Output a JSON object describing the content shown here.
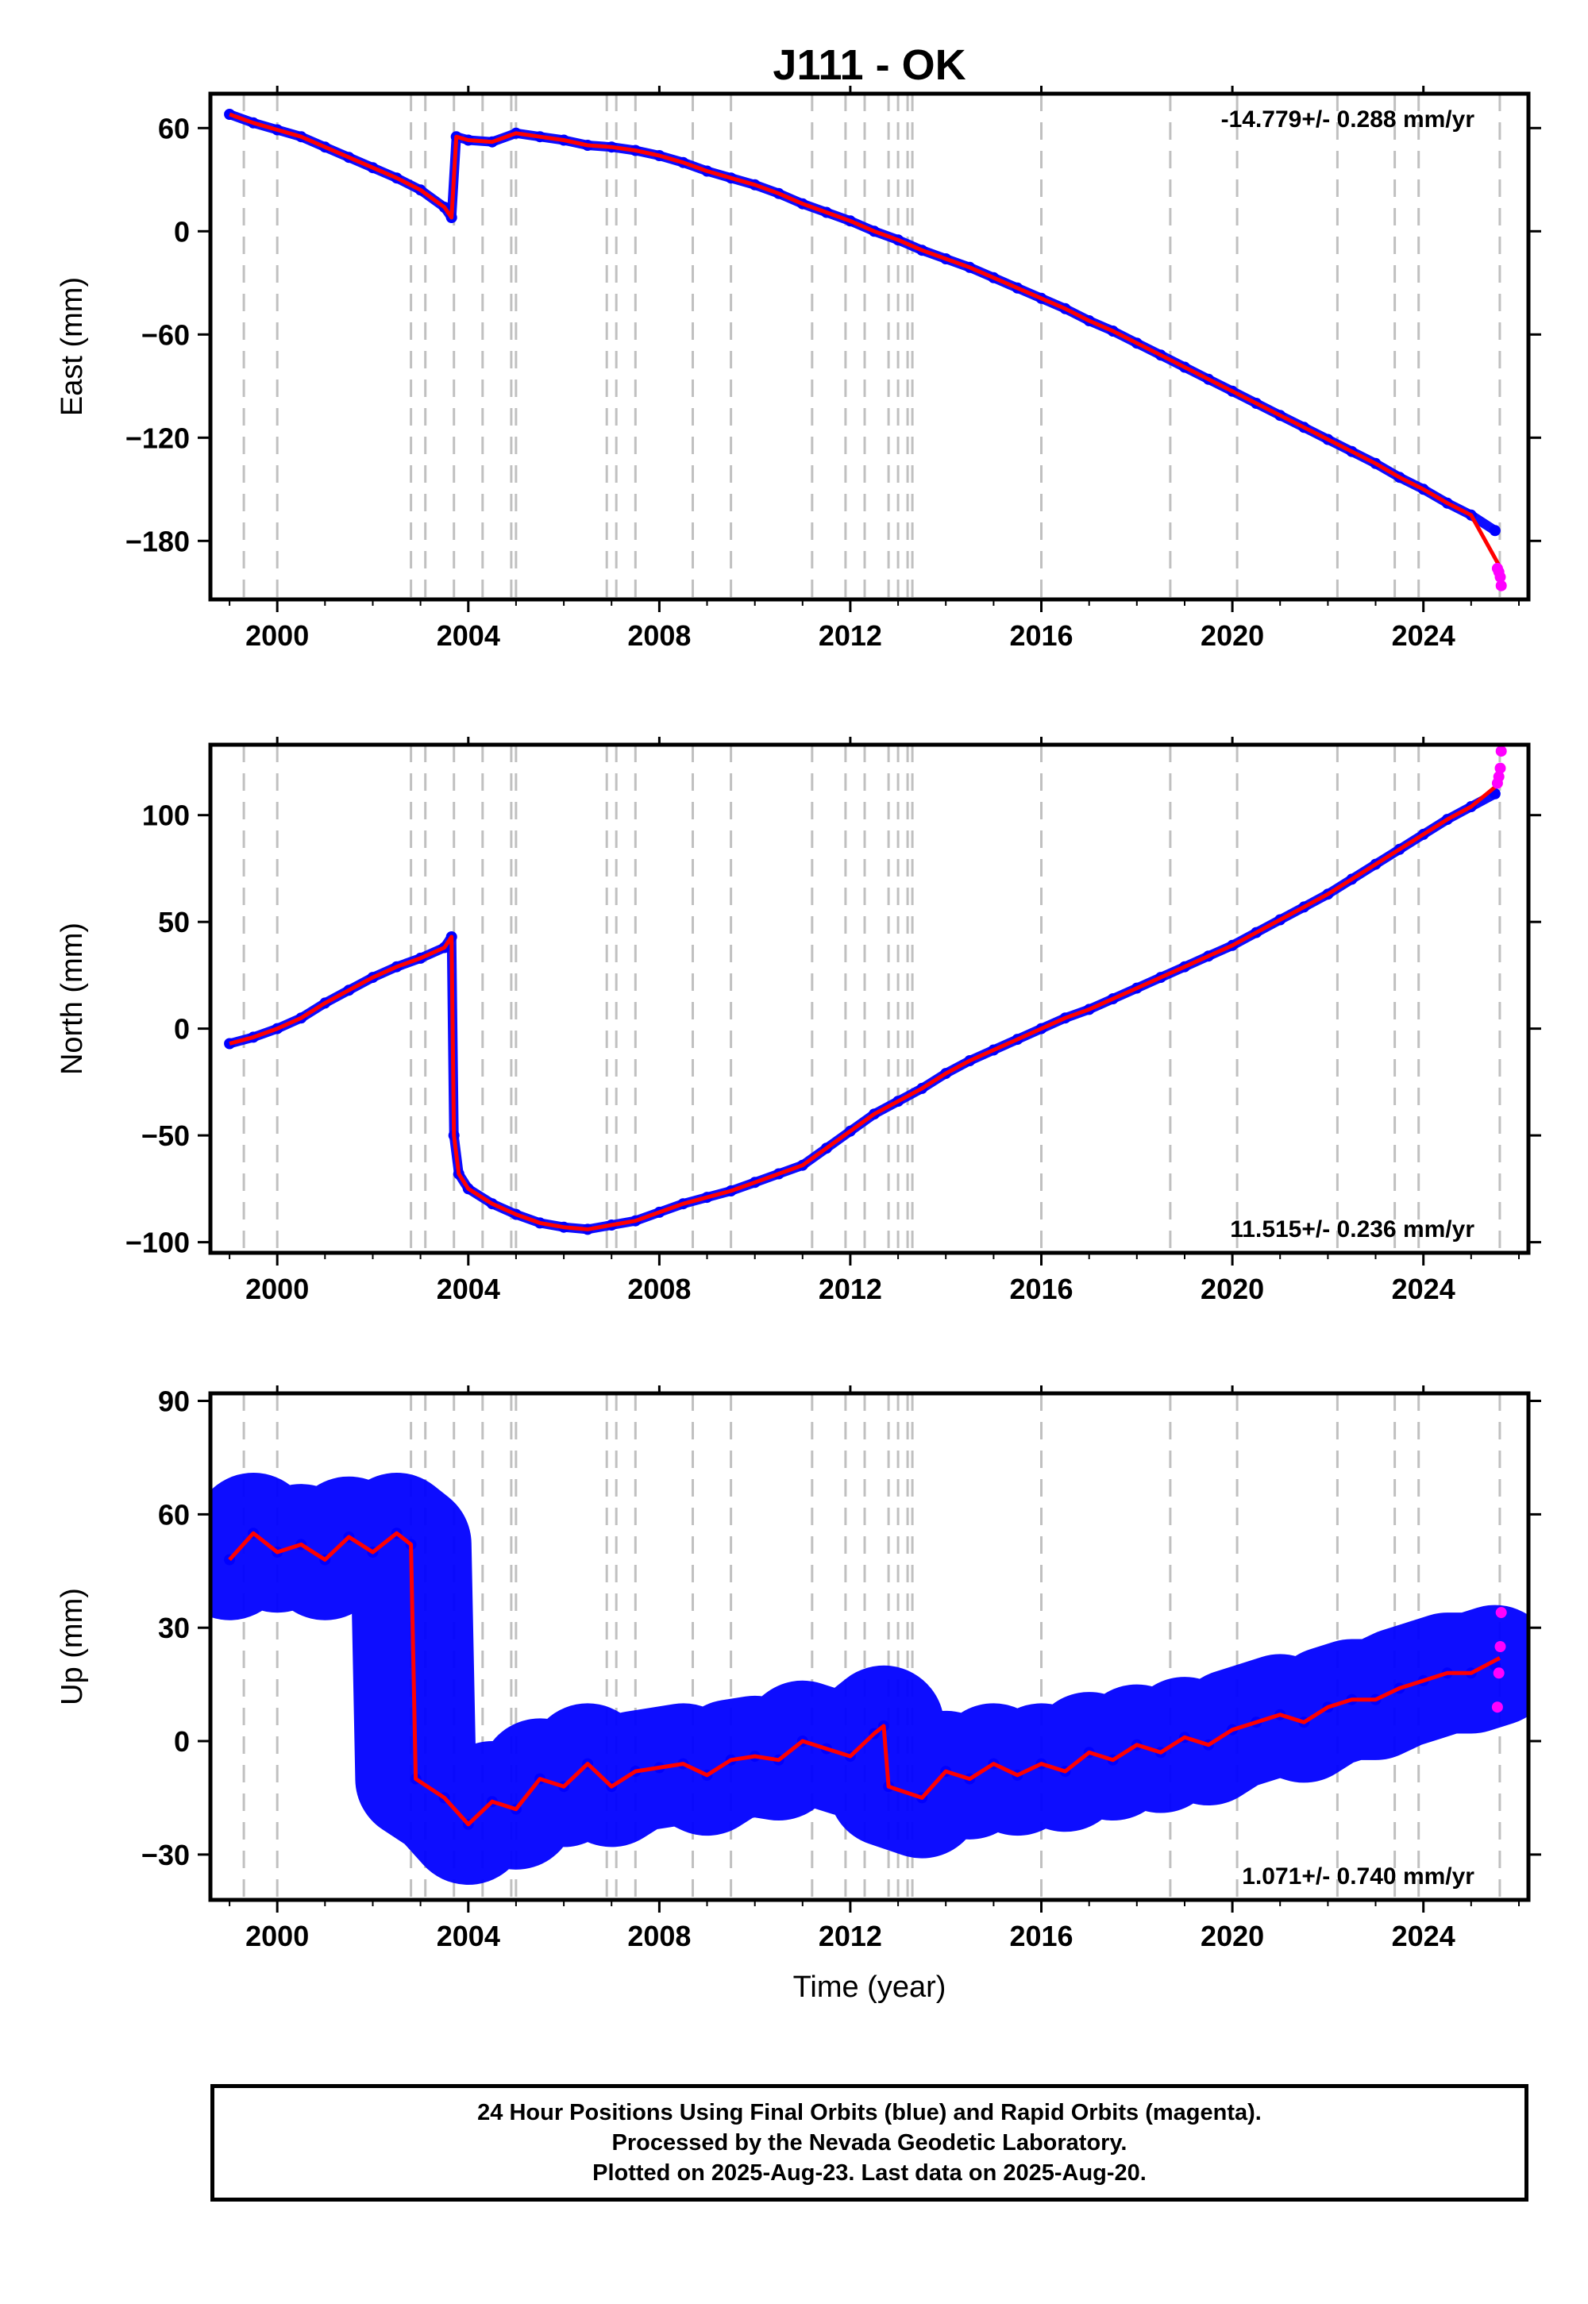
{
  "title": "J111 - OK",
  "colors": {
    "final_orbits": "#0000ff",
    "rapid_orbits": "#ff00ff",
    "model_fit": "#ff0000",
    "event_lines": "#c0c0c0"
  },
  "xlabel": "Time (year)",
  "footer": {
    "line1": "24 Hour Positions Using Final Orbits (blue) and Rapid Orbits (magenta).",
    "line2": "Processed by the Nevada Geodetic Laboratory.",
    "line3": "Plotted on 2025-Aug-23. Last data on 2025-Aug-20."
  },
  "chart_data": [
    {
      "type": "scatter",
      "component": "east",
      "ylabel": "East (mm)",
      "rate": "-14.779+/- 0.288 mm/yr",
      "rate_position": "top-right",
      "xlim": [
        1998.6,
        2026.2
      ],
      "ylim": [
        -214,
        80
      ],
      "xticks": [
        2000,
        2004,
        2008,
        2012,
        2016,
        2020,
        2024
      ],
      "yticks": [
        -180,
        -120,
        -60,
        0,
        60
      ],
      "grid": false,
      "event_lines": [
        1999.3,
        2000.0,
        2002.8,
        2003.1,
        2003.7,
        2004.3,
        2004.9,
        2005.0,
        2006.9,
        2007.1,
        2007.5,
        2008.7,
        2009.5,
        2011.2,
        2011.9,
        2012.3,
        2012.8,
        2013.0,
        2013.2,
        2013.3,
        2016.0,
        2018.7,
        2020.1,
        2022.2,
        2023.4,
        2023.9,
        2025.6
      ],
      "series": [
        {
          "role": "final_orbits",
          "x": [
            1999.0,
            1999.5,
            2000.0,
            2000.5,
            2001.0,
            2001.5,
            2002.0,
            2002.5,
            2003.0,
            2003.5,
            2003.65,
            2003.75,
            2004.0,
            2004.5,
            2005.0,
            2005.5,
            2006.0,
            2006.5,
            2007.0,
            2007.5,
            2008.0,
            2008.5,
            2009.0,
            2009.5,
            2010.0,
            2010.5,
            2011.0,
            2011.5,
            2012.0,
            2012.5,
            2013.0,
            2013.5,
            2014.0,
            2014.5,
            2015.0,
            2015.5,
            2016.0,
            2016.5,
            2017.0,
            2017.5,
            2018.0,
            2018.5,
            2019.0,
            2019.5,
            2020.0,
            2020.5,
            2021.0,
            2021.5,
            2022.0,
            2022.5,
            2023.0,
            2023.5,
            2024.0,
            2024.5,
            2025.0,
            2025.5
          ],
          "y": [
            68,
            63,
            59,
            55,
            49,
            43,
            37,
            31,
            24,
            14,
            8,
            55,
            53,
            52,
            57,
            55,
            53,
            50,
            49,
            47,
            44,
            40,
            35,
            31,
            27,
            22,
            16,
            11,
            6,
            0,
            -5,
            -11,
            -16,
            -21,
            -27,
            -33,
            -39,
            -45,
            -52,
            -58,
            -65,
            -72,
            -79,
            -86,
            -93,
            -100,
            -107,
            -114,
            -121,
            -128,
            -135,
            -143,
            -150,
            -158,
            -165,
            -174
          ]
        },
        {
          "role": "rapid_orbits",
          "x": [
            2025.55,
            2025.58,
            2025.61,
            2025.63
          ],
          "y": [
            -196,
            -198,
            -201,
            -206
          ]
        },
        {
          "role": "model_fit",
          "x": [
            1999.0,
            1999.5,
            2000.0,
            2000.5,
            2001.0,
            2001.5,
            2002.0,
            2002.5,
            2003.0,
            2003.5,
            2003.65,
            2003.75,
            2004.0,
            2004.5,
            2005.0,
            2005.5,
            2006.0,
            2006.5,
            2007.0,
            2007.5,
            2008.0,
            2008.5,
            2009.0,
            2009.5,
            2010.0,
            2010.5,
            2011.0,
            2011.5,
            2012.0,
            2012.5,
            2013.0,
            2013.5,
            2014.0,
            2014.5,
            2015.0,
            2015.5,
            2016.0,
            2016.5,
            2017.0,
            2017.5,
            2018.0,
            2018.5,
            2019.0,
            2019.5,
            2020.0,
            2020.5,
            2021.0,
            2021.5,
            2022.0,
            2022.5,
            2023.0,
            2023.5,
            2024.0,
            2024.5,
            2025.0,
            2025.6
          ],
          "y": [
            68,
            63,
            59,
            55,
            49,
            43,
            37,
            31,
            24,
            14,
            8,
            55,
            53,
            52,
            57,
            55,
            53,
            50,
            49,
            47,
            44,
            40,
            35,
            31,
            27,
            22,
            16,
            11,
            6,
            0,
            -5,
            -11,
            -16,
            -21,
            -27,
            -33,
            -39,
            -45,
            -52,
            -58,
            -65,
            -72,
            -79,
            -86,
            -93,
            -100,
            -107,
            -114,
            -121,
            -128,
            -135,
            -143,
            -150,
            -158,
            -165,
            -195
          ]
        }
      ]
    },
    {
      "type": "scatter",
      "component": "north",
      "ylabel": "North (mm)",
      "rate": "11.515+/- 0.236 mm/yr",
      "rate_position": "bottom-right",
      "xlim": [
        1998.6,
        2026.2
      ],
      "ylim": [
        -105,
        133
      ],
      "xticks": [
        2000,
        2004,
        2008,
        2012,
        2016,
        2020,
        2024
      ],
      "yticks": [
        -100,
        -50,
        0,
        50,
        100
      ],
      "grid": false,
      "event_lines": [
        1999.3,
        2000.0,
        2002.8,
        2003.1,
        2003.7,
        2004.3,
        2004.9,
        2005.0,
        2006.9,
        2007.1,
        2007.5,
        2008.7,
        2009.5,
        2011.2,
        2011.9,
        2012.3,
        2012.8,
        2013.0,
        2013.2,
        2013.3,
        2016.0,
        2018.7,
        2020.1,
        2022.2,
        2023.4,
        2023.9,
        2025.6
      ],
      "series": [
        {
          "role": "final_orbits",
          "x": [
            1999.0,
            1999.5,
            2000.0,
            2000.5,
            2001.0,
            2001.5,
            2002.0,
            2002.5,
            2003.0,
            2003.5,
            2003.65,
            2003.7,
            2003.8,
            2004.0,
            2004.5,
            2005.0,
            2005.5,
            2006.0,
            2006.5,
            2007.0,
            2007.5,
            2008.0,
            2008.5,
            2009.0,
            2009.5,
            2010.0,
            2010.5,
            2011.0,
            2011.5,
            2012.0,
            2012.5,
            2013.0,
            2013.5,
            2014.0,
            2014.5,
            2015.0,
            2015.5,
            2016.0,
            2016.5,
            2017.0,
            2017.5,
            2018.0,
            2018.5,
            2019.0,
            2019.5,
            2020.0,
            2020.5,
            2021.0,
            2021.5,
            2022.0,
            2022.5,
            2023.0,
            2023.5,
            2024.0,
            2024.5,
            2025.0,
            2025.5
          ],
          "y": [
            -7,
            -4,
            0,
            5,
            12,
            18,
            24,
            29,
            33,
            38,
            43,
            -50,
            -68,
            -75,
            -82,
            -87,
            -91,
            -93,
            -94,
            -92,
            -90,
            -86,
            -82,
            -79,
            -76,
            -72,
            -68,
            -64,
            -56,
            -48,
            -40,
            -34,
            -28,
            -21,
            -15,
            -10,
            -5,
            0,
            5,
            9,
            14,
            19,
            24,
            29,
            34,
            39,
            45,
            51,
            57,
            63,
            70,
            77,
            84,
            91,
            98,
            104,
            110
          ]
        },
        {
          "role": "rapid_orbits",
          "x": [
            2025.55,
            2025.58,
            2025.61,
            2025.63
          ],
          "y": [
            115,
            118,
            122,
            130
          ]
        },
        {
          "role": "model_fit",
          "x": [
            1999.0,
            1999.5,
            2000.0,
            2000.5,
            2001.0,
            2001.5,
            2002.0,
            2002.5,
            2003.0,
            2003.5,
            2003.65,
            2003.7,
            2003.8,
            2004.0,
            2004.5,
            2005.0,
            2005.5,
            2006.0,
            2006.5,
            2007.0,
            2007.5,
            2008.0,
            2008.5,
            2009.0,
            2009.5,
            2010.0,
            2010.5,
            2011.0,
            2011.5,
            2012.0,
            2012.5,
            2013.0,
            2013.5,
            2014.0,
            2014.5,
            2015.0,
            2015.5,
            2016.0,
            2016.5,
            2017.0,
            2017.5,
            2018.0,
            2018.5,
            2019.0,
            2019.5,
            2020.0,
            2020.5,
            2021.0,
            2021.5,
            2022.0,
            2022.5,
            2023.0,
            2023.5,
            2024.0,
            2024.5,
            2025.0,
            2025.6
          ],
          "y": [
            -7,
            -4,
            0,
            5,
            12,
            18,
            24,
            29,
            33,
            38,
            43,
            -50,
            -68,
            -75,
            -82,
            -87,
            -91,
            -93,
            -94,
            -92,
            -90,
            -86,
            -82,
            -79,
            -76,
            -72,
            -68,
            -64,
            -56,
            -48,
            -40,
            -34,
            -28,
            -21,
            -15,
            -10,
            -5,
            0,
            5,
            9,
            14,
            19,
            24,
            29,
            34,
            39,
            45,
            51,
            57,
            63,
            70,
            77,
            84,
            91,
            98,
            104,
            115
          ]
        }
      ]
    },
    {
      "type": "scatter",
      "component": "up",
      "ylabel": "Up (mm)",
      "rate": "1.071+/- 0.740 mm/yr",
      "rate_position": "bottom-right",
      "xlim": [
        1998.6,
        2026.2
      ],
      "ylim": [
        -42,
        92
      ],
      "xticks": [
        2000,
        2004,
        2008,
        2012,
        2016,
        2020,
        2024
      ],
      "yticks": [
        -30,
        0,
        30,
        60,
        90
      ],
      "grid": false,
      "event_lines": [
        1999.3,
        2000.0,
        2002.8,
        2003.1,
        2003.7,
        2004.3,
        2004.9,
        2005.0,
        2006.9,
        2007.1,
        2007.5,
        2008.7,
        2009.5,
        2011.2,
        2011.9,
        2012.3,
        2012.8,
        2013.0,
        2013.2,
        2013.3,
        2016.0,
        2018.7,
        2020.1,
        2022.2,
        2023.4,
        2023.9,
        2025.6
      ],
      "series": [
        {
          "role": "final_orbits",
          "x": [
            1999.0,
            1999.5,
            2000.0,
            2000.5,
            2001.0,
            2001.5,
            2002.0,
            2002.5,
            2002.8,
            2002.9,
            2003.5,
            2004.0,
            2004.5,
            2005.0,
            2005.5,
            2006.0,
            2006.5,
            2007.0,
            2007.5,
            2008.0,
            2008.5,
            2009.0,
            2009.5,
            2010.0,
            2010.5,
            2011.0,
            2011.5,
            2012.0,
            2012.5,
            2012.7,
            2012.8,
            2013.5,
            2014.0,
            2014.5,
            2015.0,
            2015.5,
            2016.0,
            2016.5,
            2017.0,
            2017.5,
            2018.0,
            2018.5,
            2019.0,
            2019.5,
            2020.0,
            2020.5,
            2021.0,
            2021.5,
            2022.0,
            2022.5,
            2023.0,
            2023.5,
            2024.0,
            2024.5,
            2025.0,
            2025.5
          ],
          "y": [
            48,
            55,
            50,
            52,
            48,
            54,
            50,
            55,
            52,
            -10,
            -15,
            -22,
            -16,
            -18,
            -10,
            -12,
            -6,
            -12,
            -8,
            -7,
            -6,
            -9,
            -5,
            -4,
            -5,
            0,
            -2,
            -4,
            2,
            4,
            -12,
            -15,
            -8,
            -10,
            -6,
            -9,
            -6,
            -8,
            -3,
            -5,
            -1,
            -3,
            1,
            -1,
            3,
            5,
            7,
            5,
            9,
            11,
            11,
            14,
            16,
            18,
            18,
            20
          ]
        },
        {
          "role": "rapid_orbits",
          "x": [
            2025.55,
            2025.58,
            2025.61,
            2025.63
          ],
          "y": [
            9,
            18,
            25,
            34
          ]
        },
        {
          "role": "model_fit",
          "x": [
            1999.0,
            1999.5,
            2000.0,
            2000.5,
            2001.0,
            2001.5,
            2002.0,
            2002.5,
            2002.8,
            2002.9,
            2003.5,
            2004.0,
            2004.5,
            2005.0,
            2005.5,
            2006.0,
            2006.5,
            2007.0,
            2007.5,
            2008.0,
            2008.5,
            2009.0,
            2009.5,
            2010.0,
            2010.5,
            2011.0,
            2011.5,
            2012.0,
            2012.5,
            2012.7,
            2012.8,
            2013.5,
            2014.0,
            2014.5,
            2015.0,
            2015.5,
            2016.0,
            2016.5,
            2017.0,
            2017.5,
            2018.0,
            2018.5,
            2019.0,
            2019.5,
            2020.0,
            2020.5,
            2021.0,
            2021.5,
            2022.0,
            2022.5,
            2023.0,
            2023.5,
            2024.0,
            2024.5,
            2025.0,
            2025.6
          ],
          "y": [
            48,
            55,
            50,
            52,
            48,
            54,
            50,
            55,
            52,
            -10,
            -15,
            -22,
            -16,
            -18,
            -10,
            -12,
            -6,
            -12,
            -8,
            -7,
            -6,
            -9,
            -5,
            -4,
            -5,
            0,
            -2,
            -4,
            2,
            4,
            -12,
            -15,
            -8,
            -10,
            -6,
            -9,
            -6,
            -8,
            -3,
            -5,
            -1,
            -3,
            1,
            -1,
            3,
            5,
            7,
            5,
            9,
            11,
            11,
            14,
            16,
            18,
            18,
            22
          ]
        }
      ]
    }
  ]
}
